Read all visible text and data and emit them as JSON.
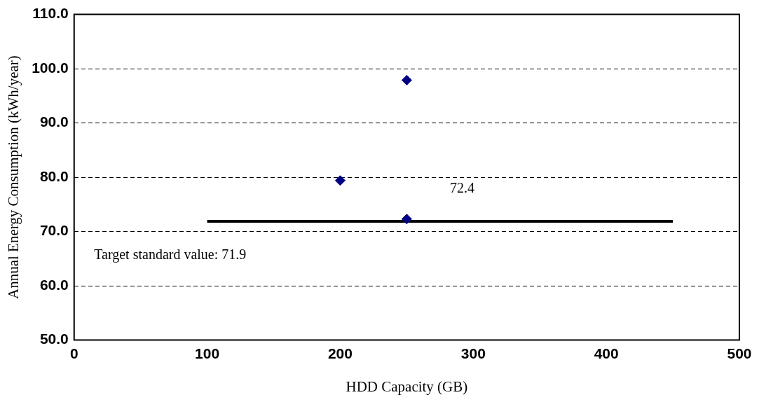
{
  "chart_data": {
    "type": "scatter",
    "xlabel": "HDD Capacity (GB)",
    "ylabel": "Annual Energy Consumption (kWh/year)",
    "series": [
      {
        "color": "#000080",
        "marker": "diamond",
        "x": [
          200,
          250,
          250
        ],
        "values": [
          79.4,
          97.9,
          72.3
        ]
      },
      {
        "type": "line",
        "color": "#000000",
        "x": [
          100,
          450
        ],
        "values": [
          71.9,
          71.9
        ]
      }
    ],
    "annotations": [
      "72.4",
      "Target standard value: 71.9"
    ],
    "xlim": [
      0,
      500
    ],
    "xticks": [
      0,
      100,
      200,
      300,
      400,
      500
    ],
    "ylim": [
      50,
      110
    ],
    "yticks": [
      {
        "value": 50,
        "label": "50.0"
      },
      {
        "value": 60,
        "label": "60.0"
      },
      {
        "value": 70,
        "label": "70.0"
      },
      {
        "value": 80,
        "label": "80.0"
      },
      {
        "value": 90,
        "label": "90.0"
      },
      {
        "value": 100,
        "label": "100.0"
      },
      {
        "value": 110,
        "label": "110.0"
      }
    ],
    "grid": "y",
    "legend": false,
    "line_style": "solid"
  }
}
